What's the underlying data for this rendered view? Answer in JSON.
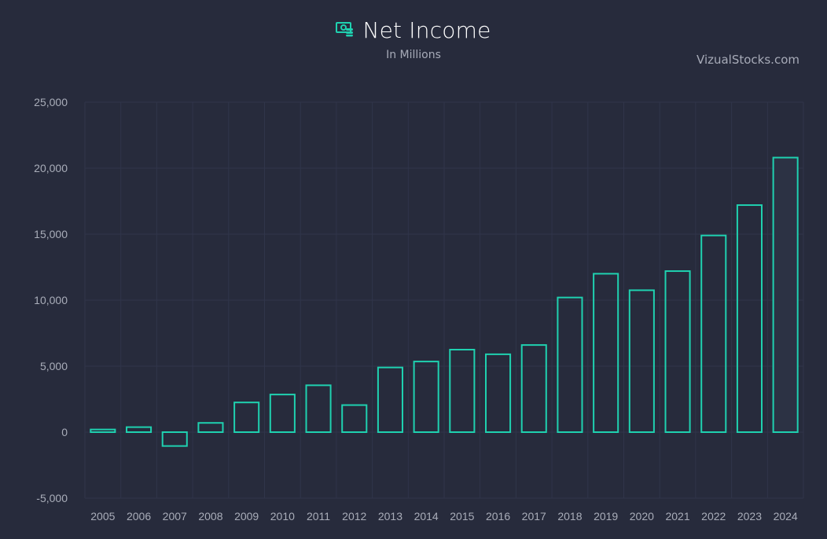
{
  "header": {
    "title": "Net Income",
    "subtitle": "In Millions",
    "brand": "VizualStocks.com",
    "icon": "money-icon"
  },
  "colors": {
    "background": "#272b3c",
    "bar_stroke": "#1fd1b0",
    "grid": "#30354a",
    "last_bar_fill": "#2c3244"
  },
  "chart_data": {
    "type": "bar",
    "title": "Net Income",
    "subtitle": "In Millions",
    "xlabel": "",
    "ylabel": "",
    "categories": [
      "2005",
      "2006",
      "2007",
      "2008",
      "2009",
      "2010",
      "2011",
      "2012",
      "2013",
      "2014",
      "2015",
      "2016",
      "2017",
      "2018",
      "2019",
      "2020",
      "2021",
      "2022",
      "2023",
      "2024"
    ],
    "values": [
      200,
      380,
      -1050,
      700,
      2250,
      2850,
      3550,
      2050,
      4900,
      5350,
      6250,
      5900,
      6600,
      10200,
      12000,
      10750,
      12200,
      14900,
      17200,
      20800
    ],
    "ylim": [
      -5000,
      25000
    ],
    "yticks": [
      25000,
      20000,
      15000,
      10000,
      5000,
      0,
      -5000
    ],
    "ytick_labels": [
      "25,000",
      "20,000",
      "15,000",
      "10,000",
      "5,000",
      "0",
      "-5,000"
    ],
    "grid": true,
    "legend": "none"
  }
}
